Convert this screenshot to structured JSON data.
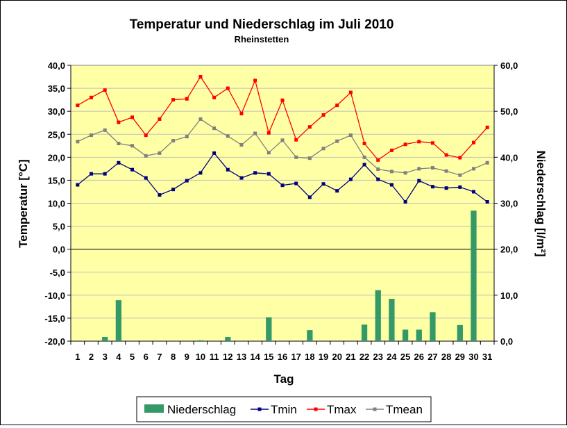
{
  "chart_data": {
    "type": "bar+line",
    "title": "Temperatur und Niederschlag im Juli 2010",
    "subtitle": "Rheinstetten",
    "xlabel": "Tag",
    "ylabel_left": "Temperatur [°C]",
    "ylabel_right": "Niederschlag [l/m²]",
    "categories": [
      "1",
      "2",
      "3",
      "4",
      "5",
      "6",
      "7",
      "8",
      "9",
      "10",
      "11",
      "12",
      "13",
      "14",
      "15",
      "16",
      "17",
      "18",
      "19",
      "20",
      "21",
      "22",
      "23",
      "24",
      "25",
      "26",
      "27",
      "28",
      "29",
      "30",
      "31"
    ],
    "ylim_left": [
      -20,
      40
    ],
    "ylim_right": [
      0,
      60
    ],
    "yticks_left": [
      "40,0",
      "35,0",
      "30,0",
      "25,0",
      "20,0",
      "15,0",
      "10,0",
      "5,0",
      "0,0",
      "-5,0",
      "-10,0",
      "-15,0",
      "-20,0"
    ],
    "yticks_right": [
      "60,0",
      "50,0",
      "40,0",
      "30,0",
      "20,0",
      "10,0",
      "0,0"
    ],
    "plot_bg": "#ffffa6",
    "grid": true,
    "legend_position": "bottom",
    "series": [
      {
        "name": "Niederschlag",
        "kind": "bar",
        "axis": "right",
        "color": "#339966",
        "values": [
          0,
          0,
          0.9,
          8.9,
          0,
          0,
          0,
          0,
          0,
          0.2,
          0,
          0.9,
          0,
          0,
          5.2,
          0,
          0,
          2.4,
          0,
          0,
          0,
          3.6,
          11.1,
          9.2,
          2.5,
          2.5,
          6.3,
          0,
          3.5,
          28.4,
          0
        ]
      },
      {
        "name": "Tmin",
        "kind": "line",
        "axis": "left",
        "color": "#000080",
        "values": [
          14.0,
          16.4,
          16.4,
          18.8,
          17.3,
          15.5,
          11.8,
          13.0,
          14.9,
          16.6,
          20.9,
          17.3,
          15.5,
          16.6,
          16.4,
          13.9,
          14.3,
          11.3,
          14.2,
          12.7,
          15.2,
          18.4,
          15.2,
          14.0,
          10.3,
          14.9,
          13.6,
          13.3,
          13.5,
          12.5,
          10.3
        ]
      },
      {
        "name": "Tmax",
        "kind": "line",
        "axis": "left",
        "color": "#ff0000",
        "values": [
          31.3,
          33.0,
          34.6,
          27.6,
          28.7,
          24.8,
          28.3,
          32.5,
          32.7,
          37.5,
          33.0,
          35.0,
          29.5,
          36.7,
          25.3,
          32.4,
          23.8,
          26.6,
          29.2,
          31.3,
          34.1,
          23.0,
          19.4,
          21.5,
          22.8,
          23.4,
          23.1,
          20.5,
          19.9,
          23.2,
          26.5
        ]
      },
      {
        "name": "Tmean",
        "kind": "line",
        "axis": "left",
        "color": "#808080",
        "values": [
          23.4,
          24.8,
          25.9,
          23.0,
          22.5,
          20.3,
          20.9,
          23.6,
          24.5,
          28.3,
          26.3,
          24.6,
          22.7,
          25.2,
          21.0,
          23.7,
          20.0,
          19.8,
          21.9,
          23.5,
          24.8,
          20.0,
          17.4,
          16.9,
          16.6,
          17.5,
          17.7,
          17.0,
          16.1,
          17.5,
          18.8
        ]
      }
    ]
  }
}
